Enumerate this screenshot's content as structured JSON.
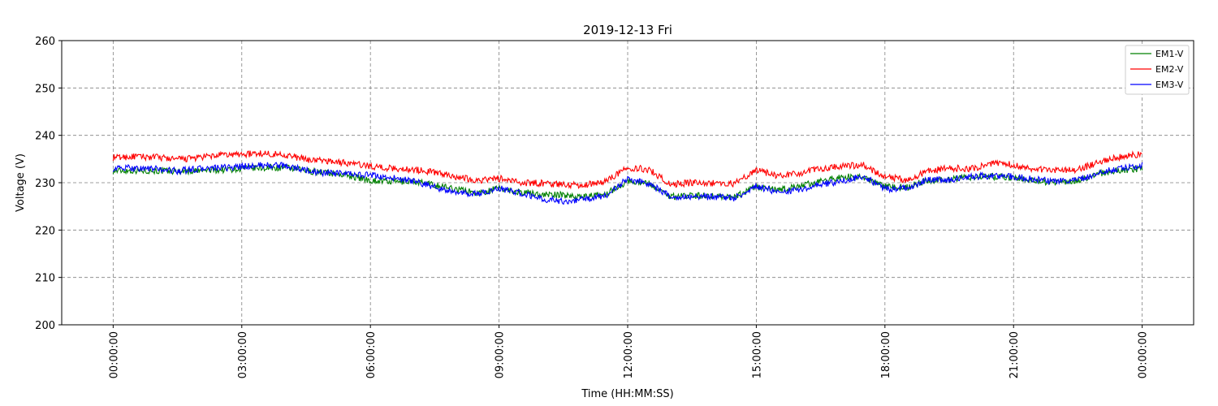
{
  "chart_data": {
    "type": "line",
    "title": "2019-12-13 Fri",
    "xlabel": "Time (HH:MM:SS)",
    "ylabel": "Voltage (V)",
    "ylim": [
      200,
      260
    ],
    "yticks": [
      200,
      210,
      220,
      230,
      240,
      250,
      260
    ],
    "xlim_hours": [
      -1.2,
      25.2
    ],
    "xticks": [
      {
        "hour": 0,
        "label": "00:00:00"
      },
      {
        "hour": 3,
        "label": "03:00:00"
      },
      {
        "hour": 6,
        "label": "06:00:00"
      },
      {
        "hour": 9,
        "label": "09:00:00"
      },
      {
        "hour": 12,
        "label": "12:00:00"
      },
      {
        "hour": 15,
        "label": "15:00:00"
      },
      {
        "hour": 18,
        "label": "18:00:00"
      },
      {
        "hour": 21,
        "label": "21:00:00"
      },
      {
        "hour": 24,
        "label": "00:00:00"
      }
    ],
    "grid": true,
    "legend_position": "top-right",
    "series": [
      {
        "name": "EM1-V",
        "color": "#008000",
        "x_hours": [
          0,
          0.5,
          1,
          1.5,
          2,
          2.5,
          3,
          3.5,
          4,
          4.5,
          5,
          5.5,
          6,
          6.5,
          7,
          7.5,
          8,
          8.5,
          9,
          9.5,
          10,
          10.5,
          11,
          11.5,
          12,
          12.5,
          13,
          13.5,
          14,
          14.5,
          15,
          15.5,
          16,
          16.5,
          17,
          17.5,
          18,
          18.5,
          19,
          19.5,
          20,
          20.5,
          21,
          21.5,
          22,
          22.5,
          23,
          23.5,
          24
        ],
        "values": [
          232.5,
          232.6,
          232.5,
          232.4,
          232.5,
          232.7,
          233.0,
          233.1,
          233.2,
          232.5,
          232.1,
          231.5,
          230.5,
          230.2,
          230.3,
          229.5,
          228.7,
          227.8,
          228.8,
          228.0,
          227.5,
          227.4,
          227.0,
          227.6,
          230.4,
          229.8,
          227.1,
          227.3,
          227.2,
          226.9,
          229.2,
          228.4,
          229.3,
          230.2,
          231.3,
          231.0,
          229.2,
          229.0,
          230.5,
          230.6,
          231.2,
          231.3,
          231.1,
          230.4,
          230.0,
          230.5,
          232.0,
          232.6,
          233.0
        ]
      },
      {
        "name": "EM2-V",
        "color": "#ff0000",
        "x_hours": [
          0,
          0.5,
          1,
          1.5,
          2,
          2.5,
          3,
          3.5,
          4,
          4.5,
          5,
          5.5,
          6,
          6.5,
          7,
          7.5,
          8,
          8.5,
          9,
          9.5,
          10,
          10.5,
          11,
          11.5,
          12,
          12.5,
          13,
          13.5,
          14,
          14.5,
          15,
          15.5,
          16,
          16.5,
          17,
          17.5,
          18,
          18.5,
          19,
          19.5,
          20,
          20.5,
          21,
          21.5,
          22,
          22.5,
          23,
          23.5,
          24
        ],
        "values": [
          235.3,
          235.5,
          235.4,
          234.9,
          235.3,
          235.8,
          236.0,
          236.2,
          235.9,
          234.9,
          234.6,
          234.1,
          233.5,
          233.0,
          232.8,
          232.2,
          231.3,
          230.5,
          230.9,
          230.0,
          229.9,
          229.6,
          229.5,
          230.4,
          233.2,
          232.8,
          229.6,
          230.0,
          229.9,
          229.8,
          232.7,
          231.4,
          232.0,
          233.0,
          233.5,
          233.7,
          231.2,
          230.6,
          232.4,
          233.1,
          232.9,
          234.1,
          233.8,
          232.9,
          232.7,
          232.8,
          234.3,
          235.5,
          236.0
        ]
      },
      {
        "name": "EM3-V",
        "color": "#0000ff",
        "x_hours": [
          0,
          0.5,
          1,
          1.5,
          2,
          2.5,
          3,
          3.5,
          4,
          4.5,
          5,
          5.5,
          6,
          6.5,
          7,
          7.5,
          8,
          8.5,
          9,
          9.5,
          10,
          10.5,
          11,
          11.5,
          12,
          12.5,
          13,
          13.5,
          14,
          14.5,
          15,
          15.5,
          16,
          16.5,
          17,
          17.5,
          18,
          18.5,
          19,
          19.5,
          20,
          20.5,
          21,
          21.5,
          22,
          22.5,
          23,
          23.5,
          24
        ],
        "values": [
          233.0,
          233.1,
          232.9,
          232.5,
          232.9,
          233.1,
          233.4,
          233.7,
          233.6,
          232.6,
          232.0,
          231.8,
          231.6,
          231.0,
          230.3,
          229.1,
          227.8,
          227.6,
          228.8,
          227.8,
          226.6,
          226.1,
          226.4,
          227.4,
          230.8,
          229.8,
          227.0,
          227.1,
          227.0,
          226.7,
          229.3,
          228.0,
          228.5,
          229.7,
          230.3,
          231.4,
          228.7,
          228.8,
          230.6,
          230.6,
          231.3,
          231.5,
          231.3,
          230.7,
          230.3,
          230.6,
          232.2,
          233.0,
          233.6
        ]
      }
    ]
  }
}
